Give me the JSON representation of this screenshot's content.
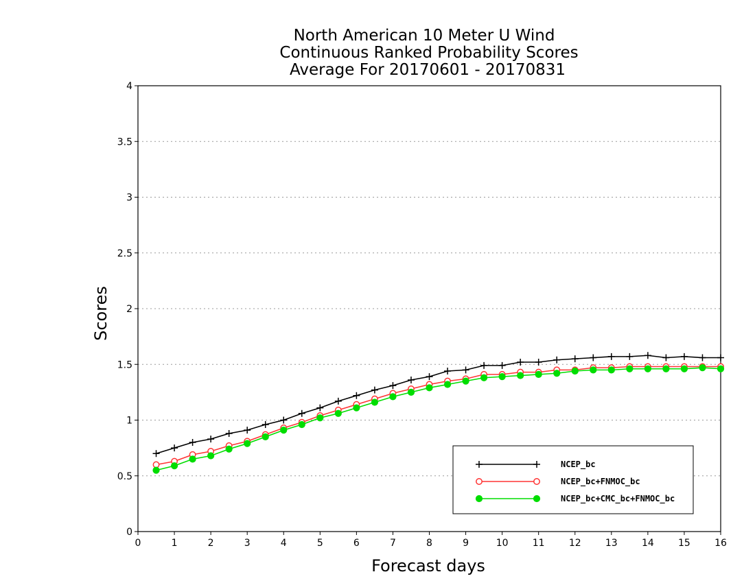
{
  "chart_data": {
    "type": "line",
    "title_lines": [
      "North American 10 Meter U Wind",
      "Continuous Ranked Probability Scores",
      "Average For 20170601 - 20170831"
    ],
    "xlabel": "Forecast days",
    "ylabel": "Scores",
    "xlim": [
      0,
      16
    ],
    "ylim": [
      0,
      4
    ],
    "xticks": [
      0,
      1,
      2,
      3,
      4,
      5,
      6,
      7,
      8,
      9,
      10,
      11,
      12,
      13,
      14,
      15,
      16
    ],
    "yticks": [
      0,
      0.5,
      1,
      1.5,
      2,
      2.5,
      3,
      3.5,
      4
    ],
    "ytick_labels": [
      "0",
      "0.5",
      "1",
      "1.5",
      "2",
      "2.5",
      "3",
      "3.5",
      "4"
    ],
    "grid": "horizontal dotted",
    "legend_position": "bottom-right",
    "x": [
      0.5,
      1,
      1.5,
      2,
      2.5,
      3,
      3.5,
      4,
      4.5,
      5,
      5.5,
      6,
      6.5,
      7,
      7.5,
      8,
      8.5,
      9,
      9.5,
      10,
      10.5,
      11,
      11.5,
      12,
      12.5,
      13,
      13.5,
      14,
      14.5,
      15,
      15.5,
      16
    ],
    "series": [
      {
        "name": "NCEP_bc",
        "color": "#000000",
        "marker": "plus",
        "values": [
          0.7,
          0.75,
          0.8,
          0.83,
          0.88,
          0.91,
          0.96,
          1.0,
          1.06,
          1.11,
          1.17,
          1.22,
          1.27,
          1.31,
          1.36,
          1.39,
          1.44,
          1.45,
          1.49,
          1.49,
          1.52,
          1.52,
          1.54,
          1.55,
          1.56,
          1.57,
          1.57,
          1.58,
          1.56,
          1.57,
          1.56,
          1.56
        ]
      },
      {
        "name": "NCEP_bc+FNMOC_bc",
        "color": "#ff3333",
        "marker": "open-circle",
        "values": [
          0.6,
          0.63,
          0.69,
          0.72,
          0.77,
          0.81,
          0.87,
          0.93,
          0.98,
          1.04,
          1.09,
          1.14,
          1.19,
          1.24,
          1.28,
          1.32,
          1.35,
          1.37,
          1.41,
          1.41,
          1.43,
          1.43,
          1.45,
          1.45,
          1.47,
          1.47,
          1.48,
          1.48,
          1.48,
          1.48,
          1.48,
          1.48
        ]
      },
      {
        "name": "NCEP_bc+CMC_bc+FNMOC_bc",
        "color": "#00dd00",
        "marker": "filled-circle",
        "values": [
          0.55,
          0.59,
          0.65,
          0.68,
          0.74,
          0.79,
          0.85,
          0.91,
          0.96,
          1.02,
          1.06,
          1.11,
          1.16,
          1.21,
          1.25,
          1.29,
          1.32,
          1.35,
          1.38,
          1.39,
          1.4,
          1.41,
          1.42,
          1.44,
          1.45,
          1.45,
          1.46,
          1.46,
          1.46,
          1.46,
          1.47,
          1.46
        ]
      }
    ]
  }
}
